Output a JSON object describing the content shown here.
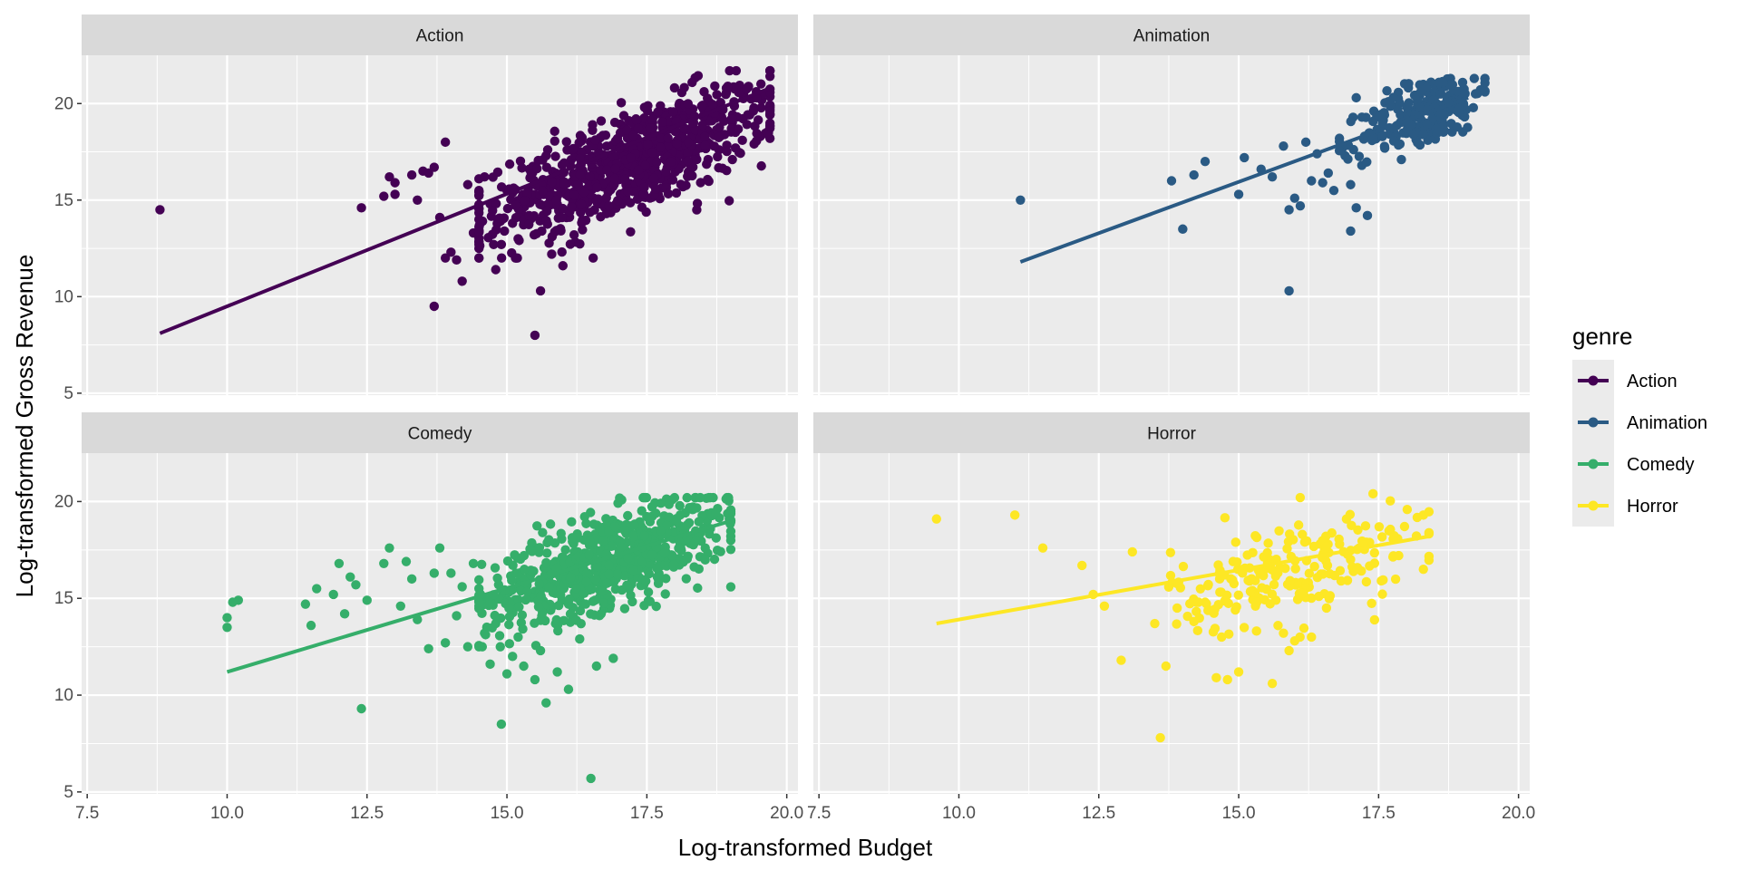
{
  "chart_data": {
    "type": "scatter",
    "xlabel": "Log-transformed Budget",
    "ylabel": "Log-transformed Gross Revenue",
    "xlim": [
      7.4,
      20.2
    ],
    "ylim": [
      4.9,
      22.5
    ],
    "x_ticks": [
      7.5,
      10.0,
      12.5,
      15.0,
      17.5,
      20.0
    ],
    "x_tick_labels": [
      "7.5",
      "10.0",
      "12.5",
      "15.0",
      "17.5",
      "20.0"
    ],
    "y_ticks": [
      5,
      10,
      15,
      20
    ],
    "y_tick_labels": [
      "5",
      "10",
      "15",
      "20"
    ],
    "legend": {
      "title": "genre",
      "position": "right",
      "entries": [
        "Action",
        "Animation",
        "Comedy",
        "Horror"
      ]
    },
    "facets": [
      {
        "name": "Action",
        "color": "#440154",
        "trend": {
          "x1": 8.8,
          "y1": 8.1,
          "x2": 19.7,
          "y2": 20.8
        },
        "cloud": {
          "n": 850,
          "x_center": 17.2,
          "x_spread": 1.3,
          "x_min": 14.5,
          "x_max": 19.7,
          "intercept": -2.0,
          "slope": 1.1,
          "noise": 1.3,
          "y_min": 12.0,
          "y_max": 21.7
        },
        "points": [
          [
            8.8,
            14.5
          ],
          [
            12.4,
            14.6
          ],
          [
            12.8,
            15.2
          ],
          [
            12.9,
            16.2
          ],
          [
            13.0,
            15.9
          ],
          [
            13.0,
            15.3
          ],
          [
            13.3,
            16.3
          ],
          [
            13.4,
            15.0
          ],
          [
            13.5,
            16.5
          ],
          [
            13.7,
            16.7
          ],
          [
            13.8,
            14.1
          ],
          [
            13.9,
            12.0
          ],
          [
            13.9,
            18.0
          ],
          [
            13.6,
            16.4
          ],
          [
            13.7,
            9.5
          ],
          [
            14.0,
            12.3
          ],
          [
            14.1,
            11.9
          ],
          [
            14.2,
            10.8
          ],
          [
            14.3,
            15.8
          ],
          [
            14.4,
            13.3
          ],
          [
            14.5,
            12.5
          ],
          [
            14.6,
            16.2
          ],
          [
            14.8,
            11.4
          ],
          [
            14.9,
            12.7
          ],
          [
            15.1,
            13.8
          ],
          [
            15.3,
            14.2
          ],
          [
            15.4,
            16.6
          ],
          [
            15.5,
            15.3
          ],
          [
            15.6,
            10.3
          ],
          [
            15.5,
            8.0
          ],
          [
            15.7,
            17.3
          ],
          [
            15.8,
            12.2
          ],
          [
            15.2,
            13.0
          ],
          [
            16.0,
            11.6
          ],
          [
            16.2,
            13.2
          ],
          [
            15.0,
            15.5
          ],
          [
            14.7,
            14.8
          ],
          [
            15.9,
            14.7
          ]
        ]
      },
      {
        "name": "Animation",
        "color": "#2a5a84",
        "trend": {
          "x1": 11.1,
          "y1": 11.8,
          "x2": 19.1,
          "y2": 20.3
        },
        "cloud": {
          "n": 230,
          "x_center": 18.3,
          "x_spread": 0.55,
          "x_min": 16.8,
          "x_max": 19.4,
          "intercept": -1.5,
          "slope": 1.15,
          "noise": 0.9,
          "y_min": 15.5,
          "y_max": 21.3
        },
        "points": [
          [
            11.1,
            15.0
          ],
          [
            13.8,
            16.0
          ],
          [
            14.0,
            13.5
          ],
          [
            14.2,
            16.3
          ],
          [
            14.4,
            17.0
          ],
          [
            15.0,
            15.3
          ],
          [
            15.1,
            17.2
          ],
          [
            15.4,
            16.6
          ],
          [
            15.6,
            16.2
          ],
          [
            15.8,
            17.8
          ],
          [
            15.9,
            10.3
          ],
          [
            15.9,
            14.5
          ],
          [
            16.0,
            15.1
          ],
          [
            16.1,
            14.7
          ],
          [
            16.3,
            16.0
          ],
          [
            16.4,
            17.4
          ],
          [
            16.5,
            15.9
          ],
          [
            16.6,
            16.4
          ],
          [
            16.7,
            15.5
          ],
          [
            16.9,
            17.3
          ],
          [
            17.0,
            13.4
          ],
          [
            17.1,
            14.6
          ],
          [
            17.2,
            16.8
          ],
          [
            17.3,
            14.2
          ],
          [
            17.0,
            15.8
          ],
          [
            17.5,
            18.6
          ],
          [
            16.8,
            18.2
          ],
          [
            16.2,
            18.0
          ],
          [
            17.1,
            20.3
          ]
        ]
      },
      {
        "name": "Comedy",
        "color": "#35ae6a",
        "trend": {
          "x1": 10.0,
          "y1": 11.2,
          "x2": 19.0,
          "y2": 19.0
        },
        "cloud": {
          "n": 700,
          "x_center": 16.8,
          "x_spread": 1.1,
          "x_min": 14.5,
          "x_max": 19.0,
          "intercept": 1.0,
          "slope": 0.95,
          "noise": 1.2,
          "y_min": 12.5,
          "y_max": 20.2
        },
        "points": [
          [
            10.0,
            14.0
          ],
          [
            10.0,
            13.5
          ],
          [
            10.1,
            14.8
          ],
          [
            10.2,
            14.9
          ],
          [
            11.4,
            14.7
          ],
          [
            11.5,
            13.6
          ],
          [
            11.6,
            15.5
          ],
          [
            11.9,
            15.2
          ],
          [
            12.0,
            16.8
          ],
          [
            12.1,
            14.2
          ],
          [
            12.2,
            16.1
          ],
          [
            12.3,
            15.7
          ],
          [
            12.4,
            9.3
          ],
          [
            12.5,
            14.9
          ],
          [
            12.8,
            16.8
          ],
          [
            12.9,
            17.6
          ],
          [
            13.1,
            14.6
          ],
          [
            13.2,
            16.9
          ],
          [
            13.3,
            16.0
          ],
          [
            13.4,
            13.9
          ],
          [
            13.6,
            12.4
          ],
          [
            13.7,
            16.3
          ],
          [
            13.8,
            17.6
          ],
          [
            13.9,
            12.7
          ],
          [
            14.0,
            16.3
          ],
          [
            14.1,
            14.1
          ],
          [
            14.2,
            15.6
          ],
          [
            14.3,
            12.5
          ],
          [
            14.4,
            16.8
          ],
          [
            14.6,
            13.2
          ],
          [
            14.7,
            11.6
          ],
          [
            14.8,
            13.7
          ],
          [
            14.9,
            8.5
          ],
          [
            15.0,
            11.1
          ],
          [
            15.1,
            12.0
          ],
          [
            15.2,
            13.0
          ],
          [
            15.3,
            11.5
          ],
          [
            15.5,
            10.8
          ],
          [
            15.6,
            12.3
          ],
          [
            15.7,
            9.6
          ],
          [
            15.9,
            11.2
          ],
          [
            16.1,
            10.3
          ],
          [
            16.3,
            12.9
          ],
          [
            16.5,
            5.7
          ],
          [
            16.6,
            11.5
          ],
          [
            16.9,
            11.9
          ]
        ]
      },
      {
        "name": "Horror",
        "color": "#fde725",
        "trend": {
          "x1": 9.6,
          "y1": 13.7,
          "x2": 18.4,
          "y2": 18.2
        },
        "cloud": {
          "n": 220,
          "x_center": 16.0,
          "x_spread": 1.1,
          "x_min": 13.5,
          "x_max": 18.4,
          "intercept": 6.0,
          "slope": 0.65,
          "noise": 1.3,
          "y_min": 13.0,
          "y_max": 20.4
        },
        "points": [
          [
            9.6,
            19.1
          ],
          [
            11.0,
            19.3
          ],
          [
            11.5,
            17.6
          ],
          [
            12.2,
            16.7
          ],
          [
            12.4,
            15.2
          ],
          [
            12.6,
            14.6
          ],
          [
            12.9,
            11.8
          ],
          [
            13.1,
            17.4
          ],
          [
            13.6,
            7.8
          ],
          [
            13.7,
            11.5
          ],
          [
            13.9,
            14.5
          ],
          [
            14.2,
            13.8
          ],
          [
            14.4,
            14.8
          ],
          [
            14.6,
            10.9
          ],
          [
            14.8,
            10.8
          ],
          [
            14.9,
            16.9
          ],
          [
            15.0,
            11.2
          ],
          [
            15.3,
            14.6
          ],
          [
            15.6,
            10.6
          ],
          [
            15.8,
            13.2
          ],
          [
            15.9,
            12.3
          ],
          [
            16.0,
            12.8
          ],
          [
            16.3,
            13.0
          ],
          [
            17.4,
            20.4
          ],
          [
            18.3,
            19.3
          ],
          [
            18.3,
            16.5
          ]
        ]
      }
    ]
  }
}
